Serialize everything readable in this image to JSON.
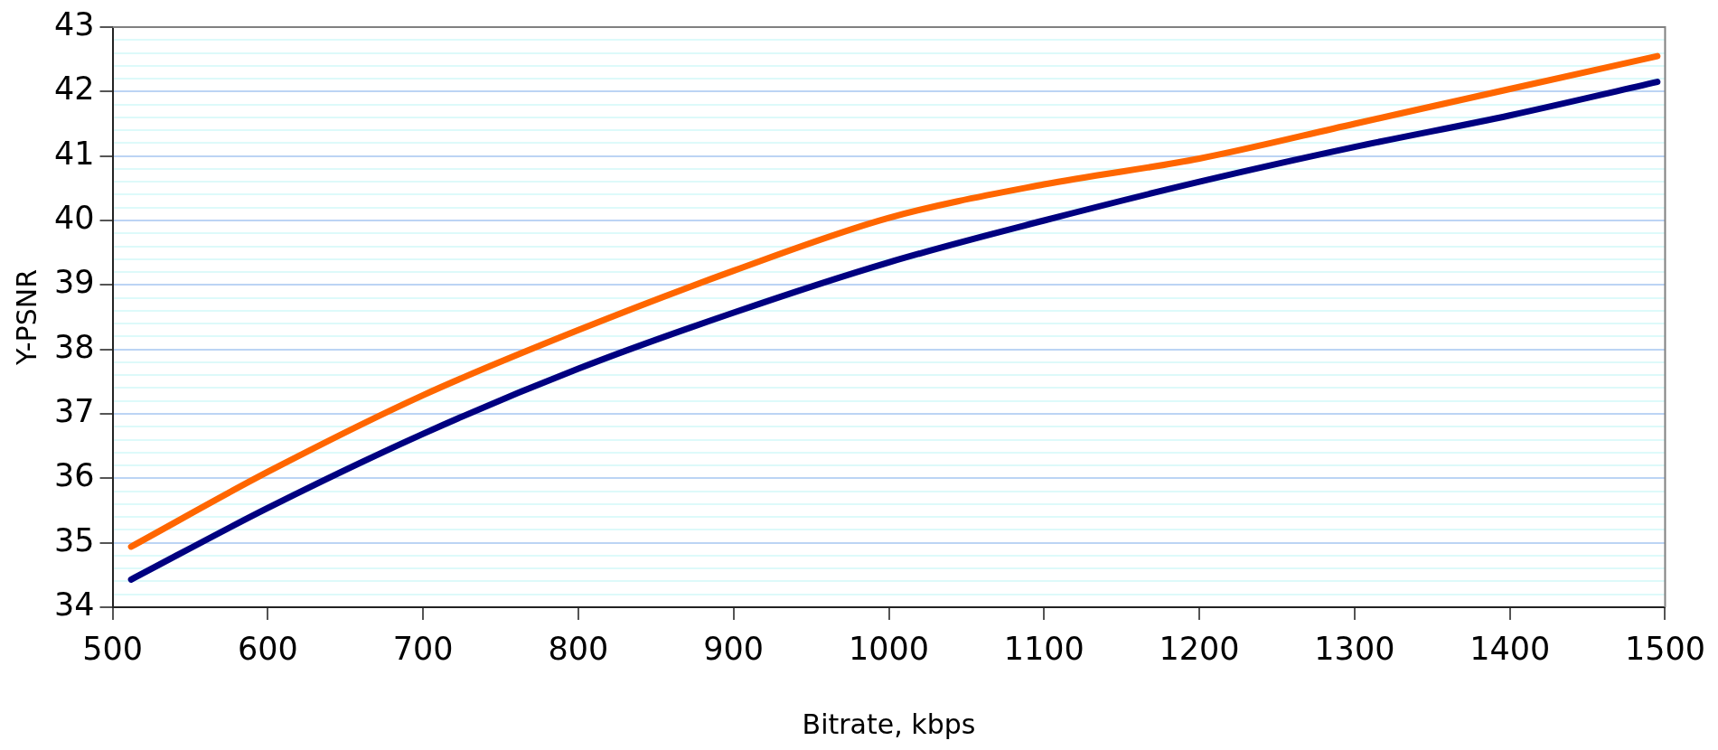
{
  "chart_data": {
    "type": "line",
    "xlabel": "Bitrate, kbps",
    "ylabel": "Y-PSNR",
    "x": [
      512,
      600,
      700,
      800,
      900,
      1000,
      1100,
      1200,
      1300,
      1400,
      1495
    ],
    "series": [
      {
        "color": "#ff6600",
        "values": [
          34.94,
          36.1,
          37.29,
          38.3,
          39.22,
          40.04,
          40.56,
          40.96,
          41.5,
          42.04,
          42.55
        ]
      },
      {
        "color": "#000080",
        "values": [
          34.43,
          35.54,
          36.69,
          37.7,
          38.57,
          39.35,
          40.0,
          40.6,
          41.14,
          41.63,
          42.15
        ]
      }
    ],
    "xlim": [
      500,
      1500
    ],
    "xticks": [
      500,
      600,
      700,
      800,
      900,
      1000,
      1100,
      1200,
      1300,
      1400,
      1500
    ],
    "ylim": [
      34,
      43
    ],
    "yticks": [
      34,
      {
        "value": 34.2,
        "label": null
      },
      {
        "value": 34.4,
        "label": null
      },
      {
        "value": 34.6,
        "label": null
      },
      {
        "value": 34.8,
        "label": null
      },
      35,
      {
        "value": 35.2,
        "label": null
      },
      {
        "value": 35.4,
        "label": null
      },
      {
        "value": 35.6,
        "label": null
      },
      {
        "value": 35.8,
        "label": null
      },
      36,
      {
        "value": 36.2,
        "label": null
      },
      {
        "value": 36.4,
        "label": null
      },
      {
        "value": 36.6,
        "label": null
      },
      {
        "value": 36.8,
        "label": null
      },
      37,
      {
        "value": 37.2,
        "label": null
      },
      {
        "value": 37.4,
        "label": null
      },
      {
        "value": 37.6,
        "label": null
      },
      {
        "value": 37.8,
        "label": null
      },
      38,
      {
        "value": 38.2,
        "label": null
      },
      {
        "value": 38.4,
        "label": null
      },
      {
        "value": 38.6,
        "label": null
      },
      {
        "value": 38.8,
        "label": null
      },
      39,
      {
        "value": 39.2,
        "label": null
      },
      {
        "value": 39.4,
        "label": null
      },
      {
        "value": 39.6,
        "label": null
      },
      {
        "value": 39.8,
        "label": null
      },
      40,
      {
        "value": 40.2,
        "label": null
      },
      {
        "value": 40.4,
        "label": null
      },
      {
        "value": 40.6,
        "label": null
      },
      {
        "value": 40.8,
        "label": null
      },
      41,
      {
        "value": 41.2,
        "label": null
      },
      {
        "value": 41.4,
        "label": null
      },
      {
        "value": 41.6,
        "label": null
      },
      {
        "value": 41.8,
        "label": null
      },
      42,
      {
        "value": 42.2,
        "label": null
      },
      {
        "value": 42.4,
        "label": null
      },
      {
        "value": 42.6,
        "label": null
      },
      {
        "value": 42.8,
        "label": null
      },
      43
    ],
    "grid": "y",
    "legend": false,
    "marker": "none",
    "line_style": "solid"
  }
}
